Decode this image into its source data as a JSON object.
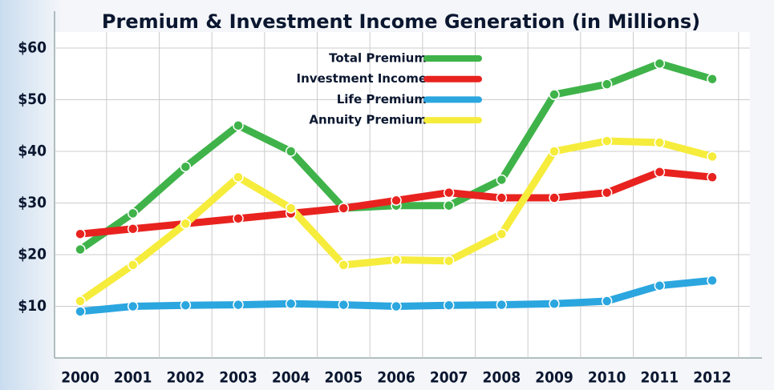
{
  "chart_data": {
    "type": "line",
    "title": "Premium & Investment Income Generation (in Millions)",
    "categories": [
      "2000",
      "2001",
      "2002",
      "2003",
      "2004",
      "2005",
      "2006",
      "2007",
      "2008",
      "2009",
      "2010",
      "2011",
      "2012"
    ],
    "series": [
      {
        "name": "Total Premium",
        "color": "#3fb34a",
        "values": [
          21,
          28,
          37,
          45,
          40,
          29,
          29.5,
          29.5,
          34.5,
          51,
          53,
          57,
          54
        ]
      },
      {
        "name": "Investment Income",
        "color": "#e8231f",
        "values": [
          24,
          25,
          26,
          27,
          28,
          29,
          30.5,
          32,
          31,
          31,
          32,
          36,
          35
        ]
      },
      {
        "name": "Life Premium",
        "color": "#2ba6df",
        "values": [
          9,
          10,
          10.2,
          10.3,
          10.5,
          10.3,
          10,
          10.2,
          10.3,
          10.5,
          11,
          14,
          15
        ]
      },
      {
        "name": "Annuity Premium",
        "color": "#f6ec3c",
        "values": [
          11,
          18,
          26,
          35,
          29,
          18,
          19,
          18.8,
          24,
          40,
          42,
          41.7,
          39
        ]
      }
    ],
    "ylim": [
      0,
      60
    ],
    "yticks": [
      {
        "value": 10,
        "label": "$10"
      },
      {
        "value": 20,
        "label": "$20"
      },
      {
        "value": 30,
        "label": "$30"
      },
      {
        "value": 40,
        "label": "$40"
      },
      {
        "value": 50,
        "label": "$50"
      },
      {
        "value": 60,
        "label": "$60"
      }
    ],
    "grid": true
  }
}
